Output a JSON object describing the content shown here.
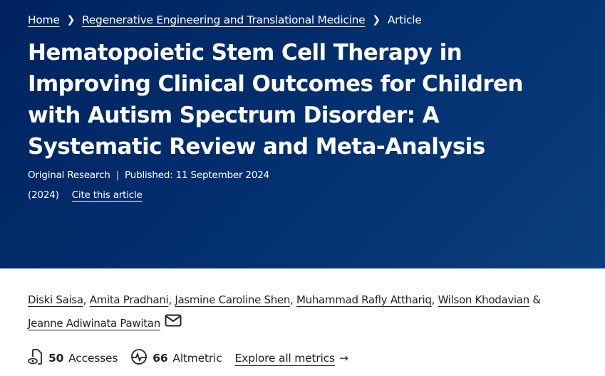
{
  "breadcrumb": [
    {
      "label": "Home"
    },
    {
      "label": "Regenerative Engineering and Translational Medicine"
    },
    {
      "label": "Article"
    }
  ],
  "title": "Hematopoietic Stem Cell Therapy in Improving Clinical Outcomes for Children with Autism Spectrum Disorder: A Systematic Review and Meta-Analysis",
  "article_type": "Original Research",
  "published": "Published: 11 September 2024",
  "year": "(2024)",
  "cite_label": "Cite this article",
  "authors": [
    "Diski Saisa",
    "Amita Pradhani",
    "Jasmine Caroline Shen",
    "Muhammad Rafly Atthariq",
    "Wilson Khodavian",
    "Jeanne Adiwinata Pawitan"
  ],
  "authors_amp": "&",
  "metrics": {
    "accesses_count": "50",
    "accesses_label": "Accesses",
    "altmetric_count": "66",
    "altmetric_label": "Altmetric",
    "explore_label": "Explore all metrics"
  },
  "colors": {
    "hero": "#022f6f"
  }
}
